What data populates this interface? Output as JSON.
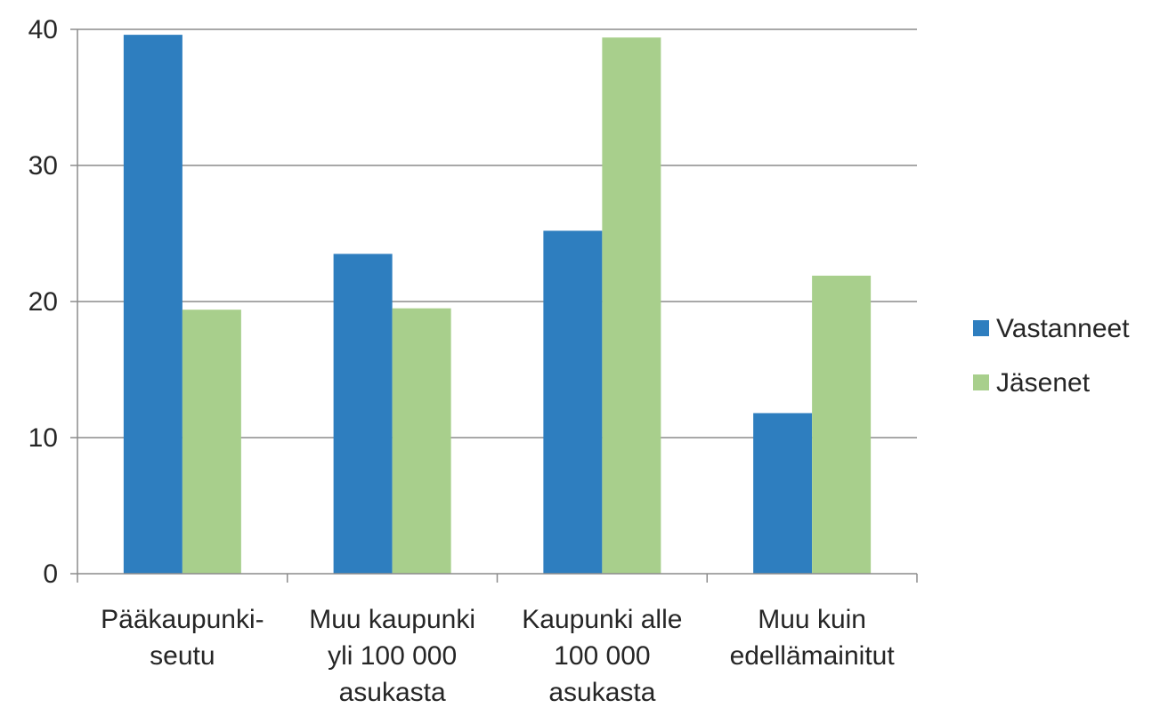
{
  "chart_data": {
    "type": "bar",
    "title": "",
    "xlabel": "",
    "ylabel": "",
    "categories": [
      [
        "Pääkaupunki-",
        "seutu"
      ],
      [
        "Muu kaupunki",
        "yli 100 000",
        "asukasta"
      ],
      [
        "Kaupunki alle",
        "100 000",
        "asukasta"
      ],
      [
        "Muu kuin",
        "edellämainitut"
      ]
    ],
    "series": [
      {
        "name": "Vastanneet",
        "color": "#2e7ebf",
        "values": [
          39.6,
          23.5,
          25.2,
          11.8
        ]
      },
      {
        "name": "Jäsenet",
        "color": "#a8cf8c",
        "values": [
          19.4,
          19.5,
          39.4,
          21.9
        ]
      }
    ],
    "ylim": [
      0,
      40
    ],
    "yticks": [
      0,
      10,
      20,
      30,
      40
    ],
    "grid": true,
    "legend_position": "right"
  }
}
